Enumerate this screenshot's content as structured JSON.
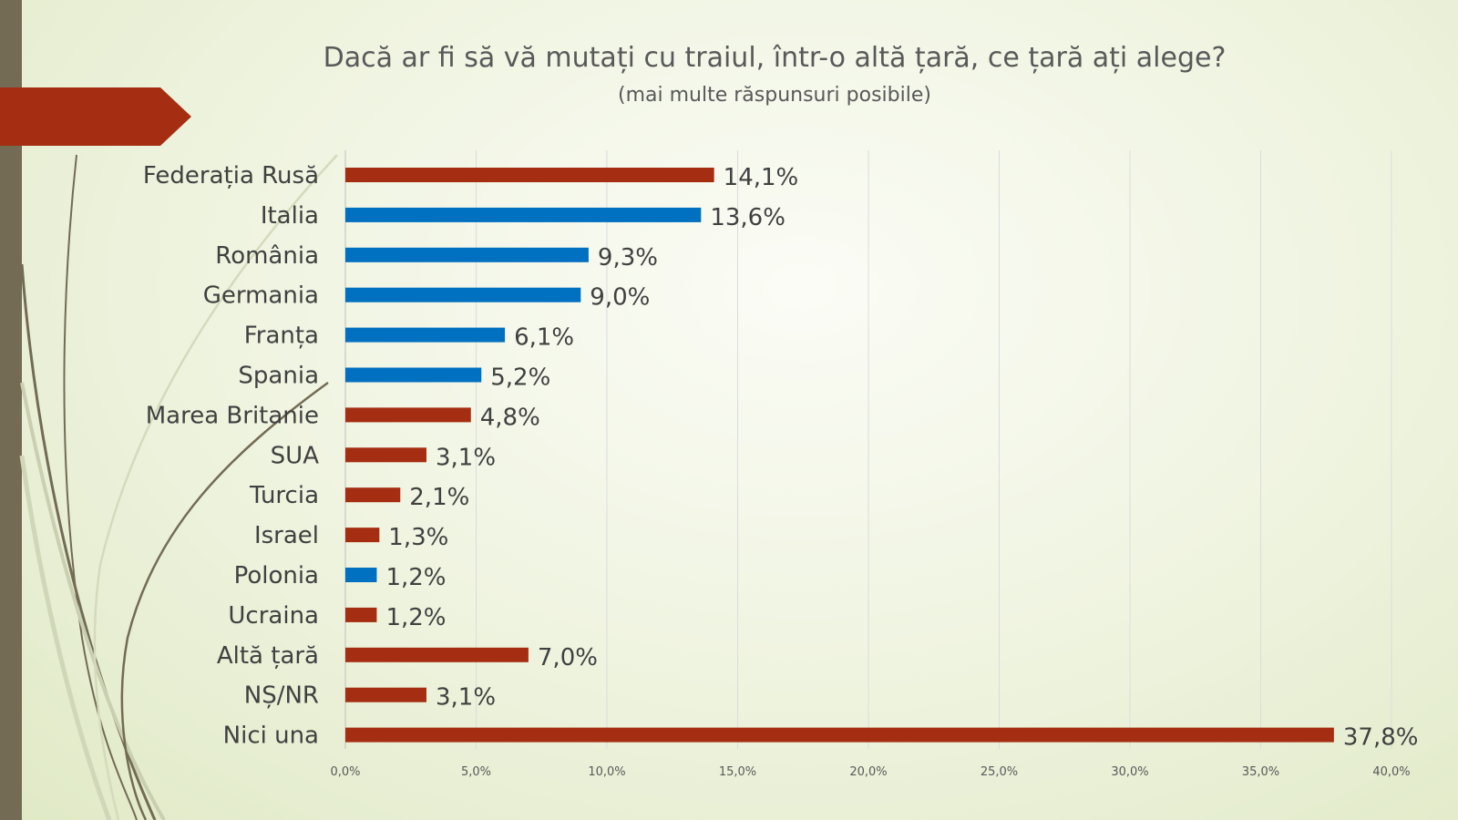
{
  "chart_data": {
    "type": "bar",
    "orientation": "horizontal",
    "title": "Dacă ar fi să vă mutați cu traiul, într-o altă țară, ce țară ați alege?",
    "subtitle": "(mai multe răspunsuri posibile)",
    "categories": [
      "Federația Rusă",
      "Italia",
      "România",
      "Germania",
      "Franța",
      "Spania",
      "Marea Britanie",
      "SUA",
      "Turcia",
      "Israel",
      "Polonia",
      "Ucraina",
      "Altă țară",
      "NȘ/NR",
      "Nici una"
    ],
    "values": [
      14.1,
      13.6,
      9.3,
      9.0,
      6.1,
      5.2,
      4.8,
      3.1,
      2.1,
      1.3,
      1.2,
      1.2,
      7.0,
      3.1,
      37.8
    ],
    "value_labels": [
      "14,1%",
      "13,6%",
      "9,3%",
      "9,0%",
      "6,1%",
      "5,2%",
      "4,8%",
      "3,1%",
      "2,1%",
      "1,3%",
      "1,2%",
      "1,2%",
      "7,0%",
      "3,1%",
      "37,8%"
    ],
    "bar_colors": [
      "#A52E12",
      "#0070C0",
      "#0070C0",
      "#0070C0",
      "#0070C0",
      "#0070C0",
      "#A52E12",
      "#A52E12",
      "#A52E12",
      "#A52E12",
      "#0070C0",
      "#A52E12",
      "#A52E12",
      "#A52E12",
      "#A52E12"
    ],
    "xlim": [
      0,
      40
    ],
    "xticks": [
      0,
      5,
      10,
      15,
      20,
      25,
      30,
      35,
      40
    ],
    "xtick_labels": [
      "0,0%",
      "5,0%",
      "10,0%",
      "15,0%",
      "20,0%",
      "25,0%",
      "30,0%",
      "35,0%",
      "40,0%"
    ],
    "grid": true,
    "xlabel": "",
    "ylabel": ""
  }
}
